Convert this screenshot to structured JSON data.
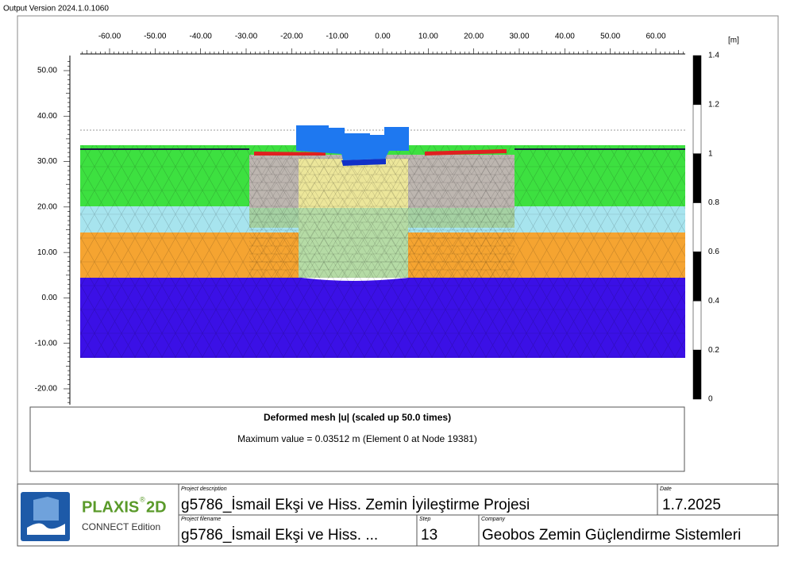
{
  "header": "Output Version 2024.1.0.1060",
  "x_axis": {
    "ticks": [
      "-60.00",
      "-50.00",
      "-40.00",
      "-30.00",
      "-20.00",
      "-10.00",
      "0.00",
      "10.00",
      "20.00",
      "30.00",
      "40.00",
      "50.00",
      "60.00"
    ]
  },
  "y_axis": {
    "ticks": [
      "50.00",
      "40.00",
      "30.00",
      "20.00",
      "10.00",
      "0.00",
      "-10.00",
      "-20.00"
    ]
  },
  "legend": {
    "unit": "[m]",
    "ticks": [
      "1.4",
      "1.2",
      "1",
      "0.8",
      "0.6",
      "0.4",
      "0.2",
      "0"
    ]
  },
  "caption": {
    "title": "Deformed mesh |u| (scaled up 50.0 times)",
    "subtitle": "Maximum value = 0.03512 m (Element 0 at Node 19381)"
  },
  "title_block": {
    "logo_title": "PLAXIS",
    "logo_mark": "®",
    "logo_product": "2D",
    "logo_edition": "CONNECT Edition",
    "project_description": {
      "label": "Project description",
      "value": "g5786_İsmail Ekşi ve Hiss. Zemin İyileştirme Projesi"
    },
    "date": {
      "label": "Date",
      "value": "1.7.2025"
    },
    "project_filename": {
      "label": "Project filename",
      "value": "g5786_İsmail Ekşi ve Hiss.  ..."
    },
    "step": {
      "label": "Step",
      "value": "13"
    },
    "company": {
      "label": "Company",
      "value": "Geobos Zemin Güçlendirme Sistemleri"
    }
  }
}
